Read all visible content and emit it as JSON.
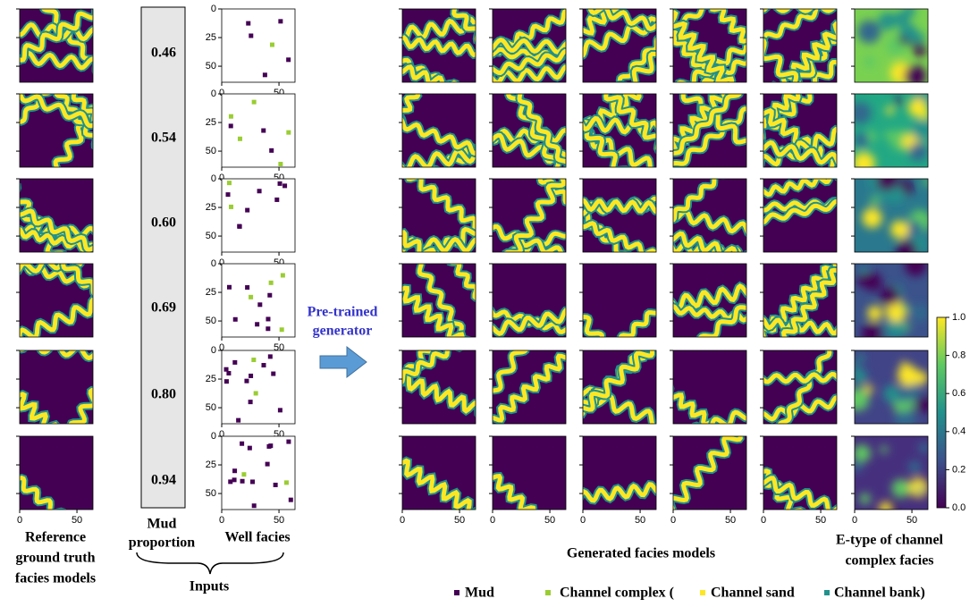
{
  "mud_proportions": [
    "0.46",
    "0.54",
    "0.60",
    "0.69",
    "0.80",
    "0.94"
  ],
  "panel_lim": [
    0,
    64
  ],
  "panel_xticks": [
    0,
    50
  ],
  "panel_yticks": [
    0,
    25,
    50
  ],
  "colorbar": {
    "lim": [
      0,
      1
    ],
    "ticks": [
      {
        "value": 0,
        "label": "0.0"
      },
      {
        "value": 0.2,
        "label": "0.2"
      },
      {
        "value": 0.4,
        "label": "0.4"
      },
      {
        "value": 0.6,
        "label": "0.6"
      },
      {
        "value": 0.8,
        "label": "0.8"
      },
      {
        "value": 1,
        "label": "1.0"
      }
    ]
  },
  "labels": {
    "reference": [
      "Reference",
      "ground truth",
      "facies models"
    ],
    "mud": [
      "Mud",
      "proportion"
    ],
    "well": "Well facies",
    "inputs": "Inputs",
    "generator": [
      "Pre-trained",
      "generator"
    ],
    "generated": "Generated facies models",
    "etype": [
      "E-type of channel",
      "complex facies"
    ]
  },
  "legend": [
    {
      "name": "Mud",
      "color": "#440154"
    },
    {
      "name": "Channel complex (",
      "color": "#9acd32"
    },
    {
      "name": "Channel sand",
      "color": "#fde725"
    },
    {
      "name": "Channel bank)",
      "color": "#21918c"
    }
  ]
}
